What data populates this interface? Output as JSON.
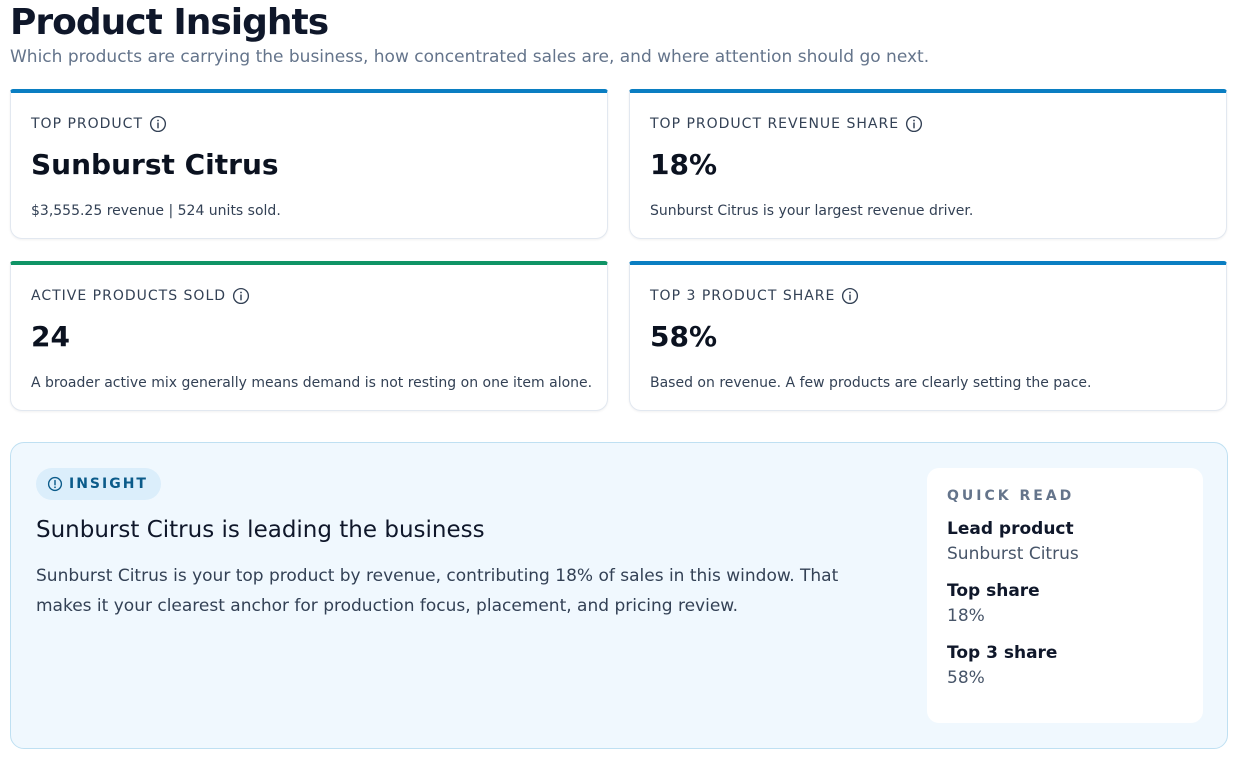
{
  "header": {
    "title": "Product Insights",
    "subtitle": "Which products are carrying the business, how concentrated sales are, and where attention should go next."
  },
  "cards": [
    {
      "label": "TOP PRODUCT",
      "value": "Sunburst Citrus",
      "note": "$3,555.25 revenue | 524 units sold.",
      "accent": "#0a7ec2"
    },
    {
      "label": "TOP PRODUCT REVENUE SHARE",
      "value": "18%",
      "note": "Sunburst Citrus is your largest revenue driver.",
      "accent": "#0a7ec2"
    },
    {
      "label": "ACTIVE PRODUCTS SOLD",
      "value": "24",
      "note": "A broader active mix generally means demand is not resting on one item alone.",
      "accent": "#0f9466"
    },
    {
      "label": "TOP 3 PRODUCT SHARE",
      "value": "58%",
      "note": "Based on revenue. A few products are clearly setting the pace.",
      "accent": "#0a7ec2"
    }
  ],
  "insight": {
    "badge": "INSIGHT",
    "title": "Sunburst Citrus is leading the business",
    "body": "Sunburst Citrus is your top product by revenue, contributing 18% of sales in this window. That makes it your clearest anchor for production focus, placement, and pricing review."
  },
  "quick_read": {
    "title": "QUICK READ",
    "items": [
      {
        "label": "Lead product",
        "value": "Sunburst Citrus"
      },
      {
        "label": "Top share",
        "value": "18%"
      },
      {
        "label": "Top 3 share",
        "value": "58%"
      }
    ]
  },
  "icons": {
    "info": "info-circle-icon",
    "insight": "exclamation-circle-icon"
  }
}
